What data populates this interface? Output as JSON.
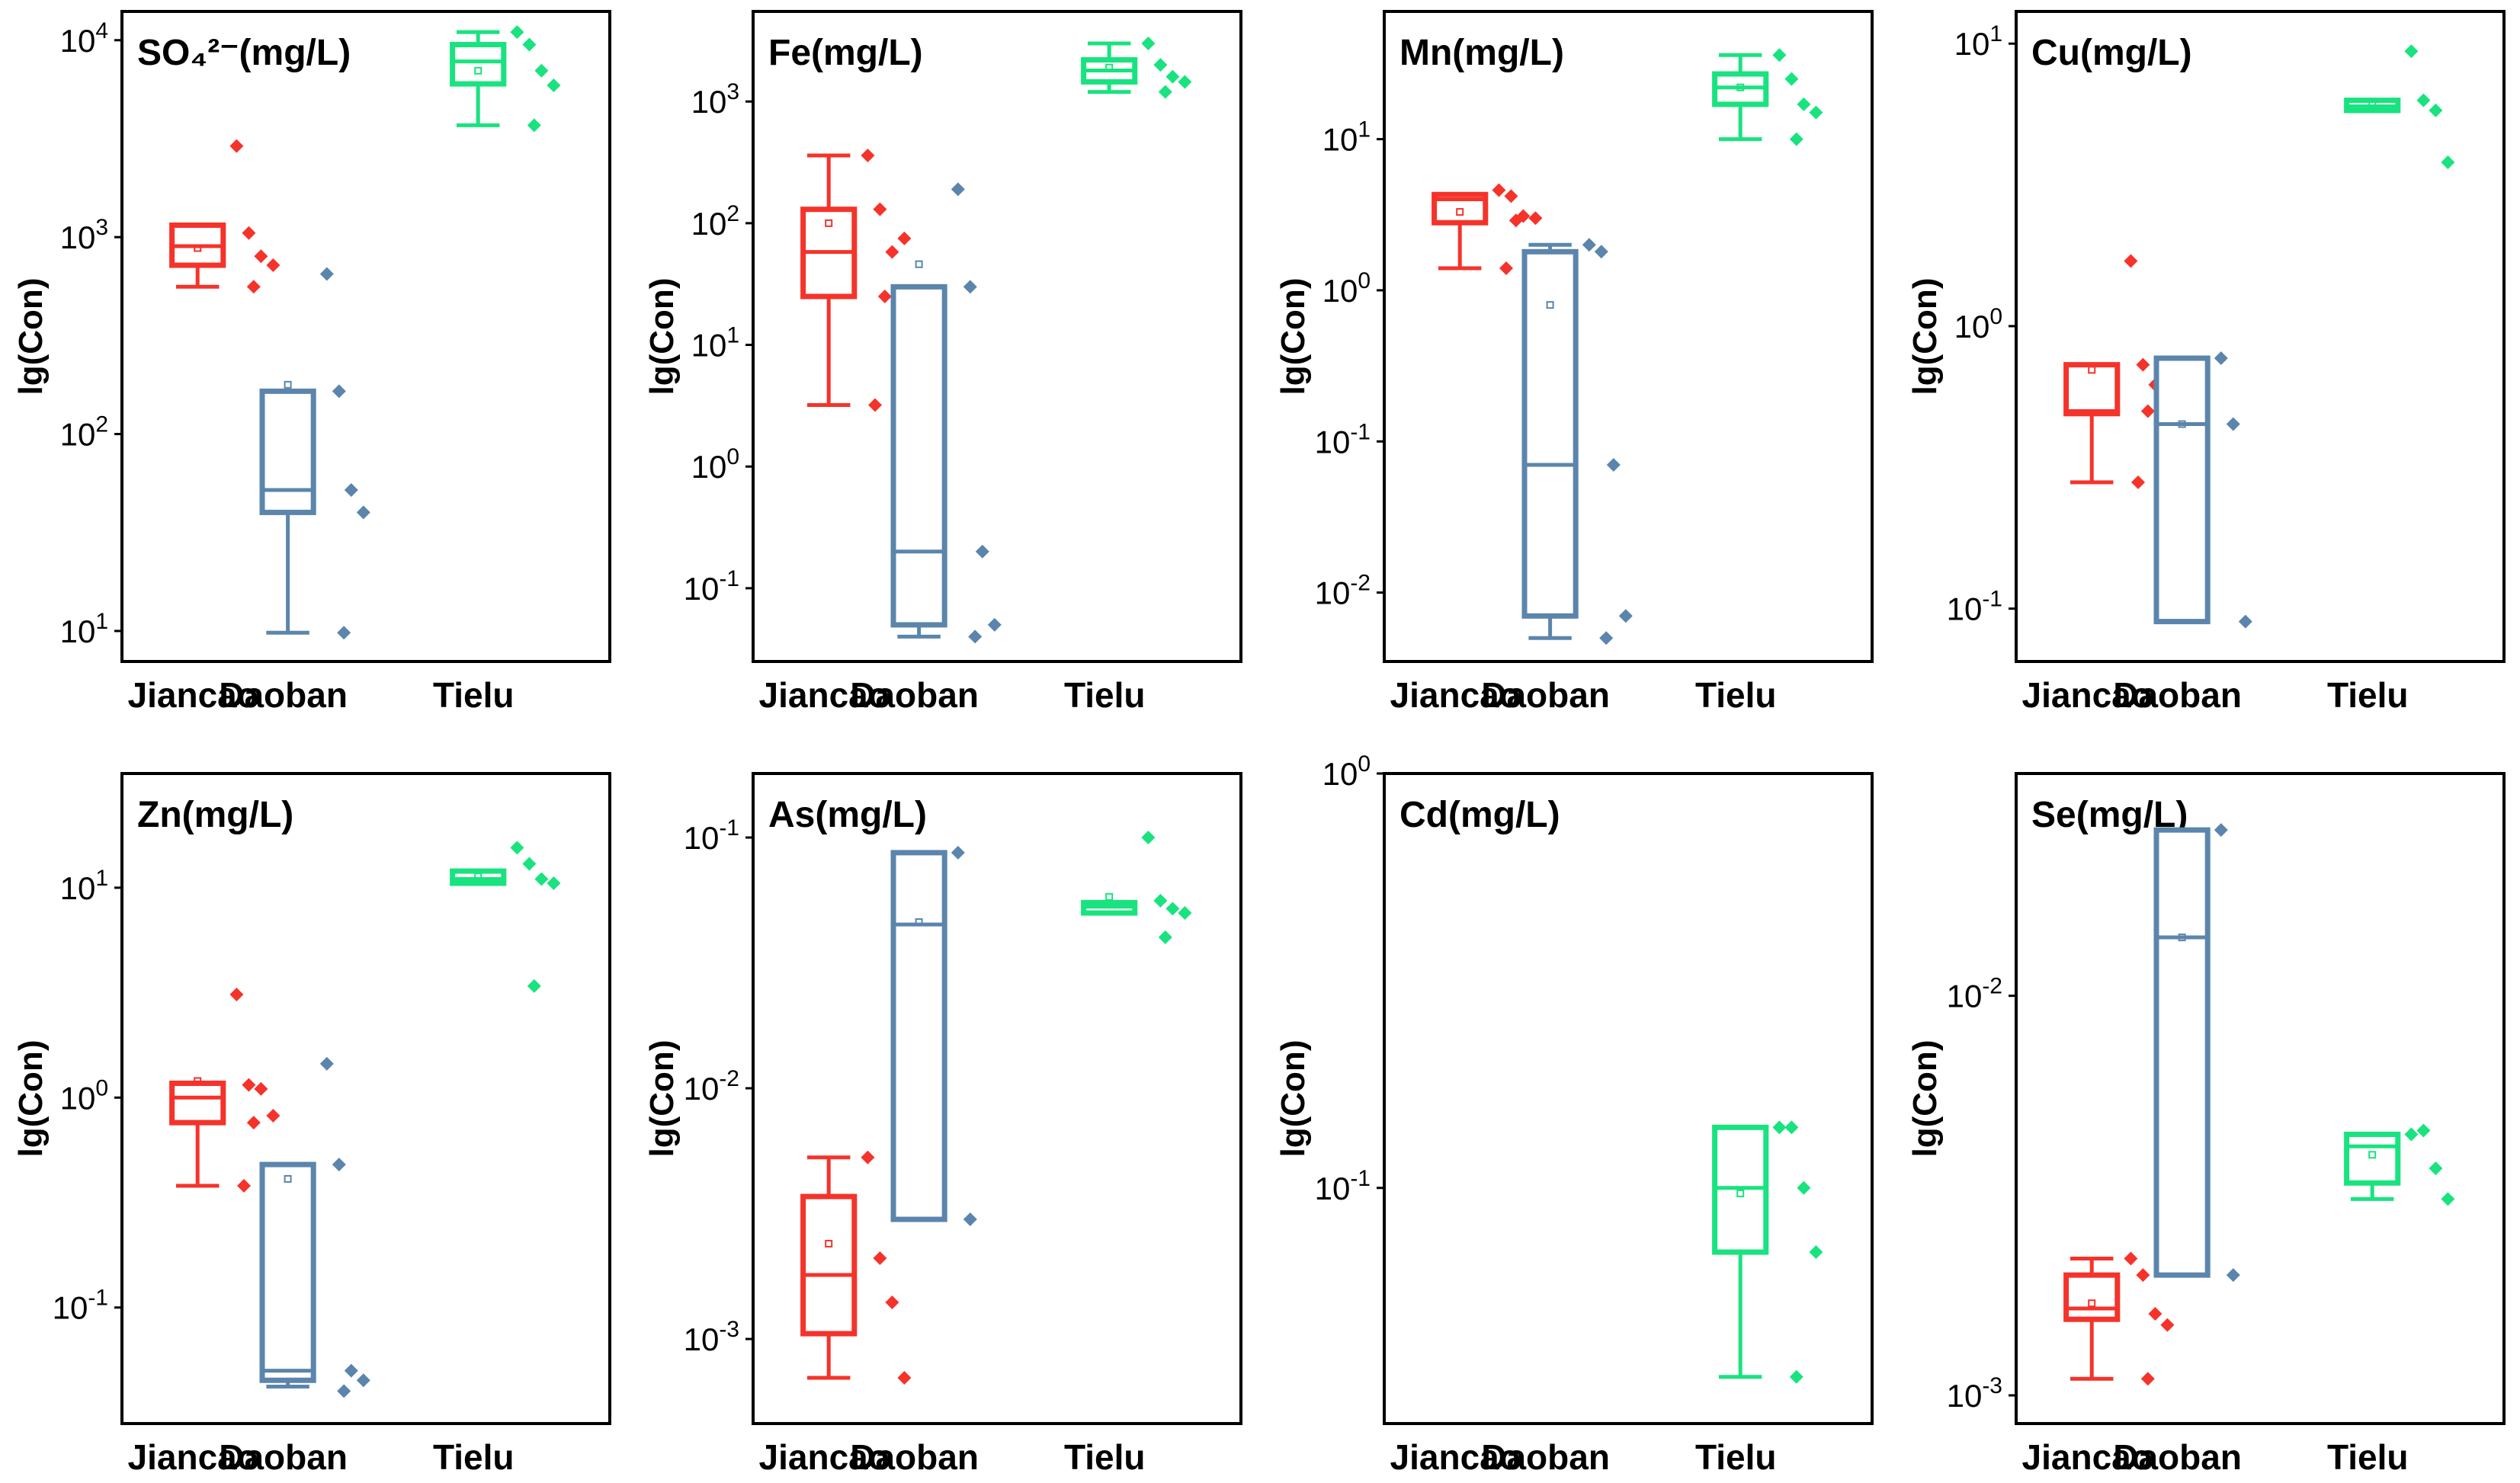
{
  "colors": {
    "Jiancao": "#f5332a",
    "Daoban": "#5b85ac",
    "Tielu": "#19e37f",
    "frame": "#000000"
  },
  "categories": [
    "Jiancao",
    "Daoban",
    "Tielu"
  ],
  "ylabel": "lg(Con)",
  "chart_data": [
    {
      "type": "box",
      "title": "SO₄²⁻(mg/L)",
      "ylabel": "lg(Con)",
      "yscale": "log",
      "ylim": [
        7,
        14000
      ],
      "ticks": [
        {
          "v": 10,
          "base": "10",
          "exp": "1"
        },
        {
          "v": 100,
          "base": "10",
          "exp": "2"
        },
        {
          "v": 1000,
          "base": "10",
          "exp": "3"
        },
        {
          "v": 10000,
          "base": "10",
          "exp": "4"
        }
      ],
      "boxes": [
        {
          "group": "Jiancao",
          "min": 560,
          "q1": 720,
          "median": 900,
          "q3": 1150,
          "max": 1150,
          "mean": 880,
          "points": [
            2900,
            1050,
            800,
            720,
            560
          ]
        },
        {
          "group": "Daoban",
          "min": 9.8,
          "q1": 40,
          "median": 52,
          "q3": 165,
          "max": 165,
          "mean": 178,
          "points": [
            650,
            165,
            52,
            40,
            9.8
          ]
        },
        {
          "group": "Tielu",
          "min": 3700,
          "q1": 6000,
          "median": 7800,
          "q3": 9500,
          "max": 11000,
          "mean": 7000,
          "points": [
            11000,
            9500,
            7000,
            5900,
            3700
          ]
        }
      ]
    },
    {
      "type": "box",
      "title": "Fe(mg/L)",
      "ylabel": "lg(Con)",
      "yscale": "log",
      "ylim": [
        0.025,
        5500
      ],
      "ticks": [
        {
          "v": 0.1,
          "base": "10",
          "exp": "-1"
        },
        {
          "v": 1,
          "base": "10",
          "exp": "0"
        },
        {
          "v": 10,
          "base": "10",
          "exp": "1"
        },
        {
          "v": 100,
          "base": "10",
          "exp": "2"
        },
        {
          "v": 1000,
          "base": "10",
          "exp": "3"
        }
      ],
      "boxes": [
        {
          "group": "Jiancao",
          "min": 3.2,
          "q1": 25,
          "median": 58,
          "q3": 130,
          "max": 360,
          "mean": 100,
          "points": [
            360,
            130,
            58,
            75,
            25,
            3.2
          ]
        },
        {
          "group": "Daoban",
          "min": 0.04,
          "q1": 0.05,
          "median": 0.2,
          "q3": 30,
          "max": 30,
          "mean": 46,
          "points": [
            190,
            30,
            0.2,
            0.05,
            0.04
          ]
        },
        {
          "group": "Tielu",
          "min": 1200,
          "q1": 1450,
          "median": 1800,
          "q3": 2200,
          "max": 3000,
          "mean": 1900,
          "points": [
            3000,
            2000,
            1600,
            1450,
            1200
          ]
        }
      ]
    },
    {
      "type": "box",
      "title": "Mn(mg/L)",
      "ylabel": "lg(Con)",
      "yscale": "log",
      "ylim": [
        0.0035,
        70
      ],
      "ticks": [
        {
          "v": 0.01,
          "base": "10",
          "exp": "-2"
        },
        {
          "v": 0.1,
          "base": "10",
          "exp": "-1"
        },
        {
          "v": 1,
          "base": "10",
          "exp": "0"
        },
        {
          "v": 10,
          "base": "10",
          "exp": "1"
        }
      ],
      "boxes": [
        {
          "group": "Jiancao",
          "min": 1.4,
          "q1": 2.8,
          "median": 4.0,
          "q3": 4.3,
          "max": 4.3,
          "mean": 3.3,
          "points": [
            4.6,
            4.2,
            3.1,
            3.0,
            2.9,
            1.4
          ]
        },
        {
          "group": "Daoban",
          "min": 0.005,
          "q1": 0.007,
          "median": 0.07,
          "q3": 1.8,
          "max": 2.0,
          "mean": 0.8,
          "points": [
            2.0,
            1.8,
            0.07,
            0.007,
            0.005
          ]
        },
        {
          "group": "Tielu",
          "min": 10,
          "q1": 17,
          "median": 22,
          "q3": 27,
          "max": 36,
          "mean": 22,
          "points": [
            36,
            25,
            17,
            15,
            10
          ]
        }
      ]
    },
    {
      "type": "box",
      "title": "Cu(mg/L)",
      "ylabel": "lg(Con)",
      "yscale": "log",
      "ylim": [
        0.065,
        13
      ],
      "ticks": [
        {
          "v": 0.1,
          "base": "10",
          "exp": "-1"
        },
        {
          "v": 1,
          "base": "10",
          "exp": "0"
        },
        {
          "v": 10,
          "base": "10",
          "exp": "1"
        }
      ],
      "boxes": [
        {
          "group": "Jiancao",
          "min": 0.28,
          "q1": 0.49,
          "median": 0.5,
          "q3": 0.73,
          "max": 0.73,
          "mean": 0.7,
          "points": [
            1.7,
            0.73,
            0.62,
            0.52,
            0.5,
            0.28
          ]
        },
        {
          "group": "Daoban",
          "min": 0.09,
          "q1": 0.09,
          "median": 0.45,
          "q3": 0.77,
          "max": 0.77,
          "mean": 0.45,
          "points": [
            0.77,
            0.45,
            0.09
          ]
        },
        {
          "group": "Tielu",
          "min": 5.8,
          "q1": 5.8,
          "median": 6.0,
          "q3": 6.3,
          "max": 6.3,
          "mean": 6.1,
          "points": [
            9.4,
            6.3,
            5.8,
            3.8
          ]
        }
      ]
    },
    {
      "type": "box",
      "title": "Zn(mg/L)",
      "ylabel": "lg(Con)",
      "yscale": "log",
      "ylim": [
        0.028,
        35
      ],
      "ticks": [
        {
          "v": 0.1,
          "base": "10",
          "exp": "-1"
        },
        {
          "v": 1,
          "base": "10",
          "exp": "0"
        },
        {
          "v": 10,
          "base": "10",
          "exp": "1"
        }
      ],
      "boxes": [
        {
          "group": "Jiancao",
          "min": 0.38,
          "q1": 0.76,
          "median": 1.0,
          "q3": 1.17,
          "max": 1.17,
          "mean": 1.2,
          "points": [
            3.1,
            1.15,
            1.1,
            0.82,
            0.76,
            0.38
          ]
        },
        {
          "group": "Daoban",
          "min": 0.042,
          "q1": 0.045,
          "median": 0.05,
          "q3": 0.48,
          "max": 0.48,
          "mean": 0.41,
          "points": [
            1.45,
            0.48,
            0.05,
            0.045,
            0.04
          ]
        },
        {
          "group": "Tielu",
          "min": 10.5,
          "q1": 10.5,
          "median": 11,
          "q3": 12,
          "max": 12,
          "mean": 11.3,
          "points": [
            15.5,
            13,
            11,
            10.5,
            3.4
          ]
        }
      ]
    },
    {
      "type": "box",
      "title": "As(mg/L)",
      "ylabel": "lg(Con)",
      "yscale": "log",
      "ylim": [
        0.00046,
        0.18
      ],
      "ticks": [
        {
          "v": 0.001,
          "base": "10",
          "exp": "-3"
        },
        {
          "v": 0.01,
          "base": "10",
          "exp": "-2"
        },
        {
          "v": 0.1,
          "base": "10",
          "exp": "-1"
        }
      ],
      "boxes": [
        {
          "group": "Jiancao",
          "min": 0.0007,
          "q1": 0.00105,
          "median": 0.0018,
          "q3": 0.0037,
          "max": 0.0053,
          "mean": 0.0024,
          "points": [
            0.0053,
            0.0021,
            0.0014,
            0.0007
          ]
        },
        {
          "group": "Daoban",
          "min": 0.003,
          "q1": 0.003,
          "median": 0.045,
          "q3": 0.087,
          "max": 0.087,
          "mean": 0.046,
          "points": [
            0.087,
            0.003
          ]
        },
        {
          "group": "Tielu",
          "min": 0.05,
          "q1": 0.05,
          "median": 0.053,
          "q3": 0.055,
          "max": 0.055,
          "mean": 0.058,
          "points": [
            0.1,
            0.056,
            0.052,
            0.05,
            0.04
          ]
        }
      ]
    },
    {
      "type": "box",
      "title": "Cd(mg/L)",
      "ylabel": "lg(Con)",
      "yscale": "log",
      "ylim": [
        0.027,
        1.0
      ],
      "ticks": [
        {
          "v": 0.1,
          "base": "10",
          "exp": "-1"
        },
        {
          "v": 1,
          "base": "10",
          "exp": "0"
        }
      ],
      "boxes": [
        {
          "group": "Tielu",
          "min": 0.035,
          "q1": 0.07,
          "median": 0.1,
          "q3": 0.14,
          "max": 0.14,
          "mean": 0.097,
          "points": [
            0.14,
            0.14,
            0.1,
            0.07,
            0.035
          ]
        }
      ]
    },
    {
      "type": "box",
      "title": "Se(mg/L)",
      "ylabel": "lg(Con)",
      "yscale": "log",
      "ylim": [
        0.00085,
        0.036
      ],
      "ticks": [
        {
          "v": 0.001,
          "base": "10",
          "exp": "-3"
        },
        {
          "v": 0.01,
          "base": "10",
          "exp": "-2"
        }
      ],
      "boxes": [
        {
          "group": "Jiancao",
          "min": 0.0011,
          "q1": 0.00155,
          "median": 0.00165,
          "q3": 0.002,
          "max": 0.0022,
          "mean": 0.0017,
          "points": [
            0.0022,
            0.002,
            0.0016,
            0.0015,
            0.0011
          ]
        },
        {
          "group": "Daoban",
          "min": 0.002,
          "q1": 0.002,
          "median": 0.014,
          "q3": 0.026,
          "max": 0.026,
          "mean": 0.014,
          "points": [
            0.026,
            0.002
          ]
        },
        {
          "group": "Tielu",
          "min": 0.0031,
          "q1": 0.0034,
          "median": 0.0042,
          "q3": 0.0045,
          "max": 0.0045,
          "mean": 0.004,
          "points": [
            0.0045,
            0.0046,
            0.0037,
            0.0031
          ]
        }
      ]
    }
  ]
}
